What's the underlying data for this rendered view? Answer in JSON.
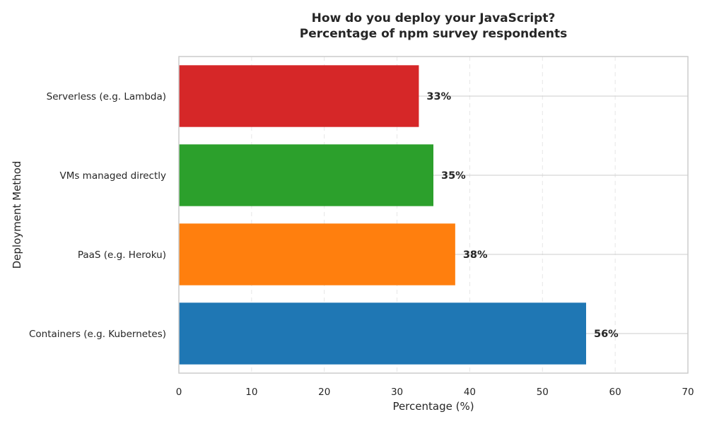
{
  "chart_data": {
    "type": "bar",
    "orientation": "horizontal",
    "title": "How do you deploy your JavaScript?",
    "subtitle": "Percentage of npm survey respondents",
    "xlabel": "Percentage (%)",
    "ylabel": "Deployment Method",
    "xlim": [
      0,
      70
    ],
    "xticks": [
      0,
      10,
      20,
      30,
      40,
      50,
      60,
      70
    ],
    "categories": [
      "Containers (e.g. Kubernetes)",
      "PaaS (e.g. Heroku)",
      "VMs managed directly",
      "Serverless (e.g. Lambda)"
    ],
    "values": [
      56,
      38,
      35,
      33
    ],
    "data_labels": [
      "56%",
      "38%",
      "35%",
      "33%"
    ],
    "colors": [
      "#1f77b4",
      "#ff7f0e",
      "#2ca02c",
      "#d62728"
    ],
    "grid": {
      "x": true,
      "y": true,
      "x_style": "dashed"
    }
  }
}
